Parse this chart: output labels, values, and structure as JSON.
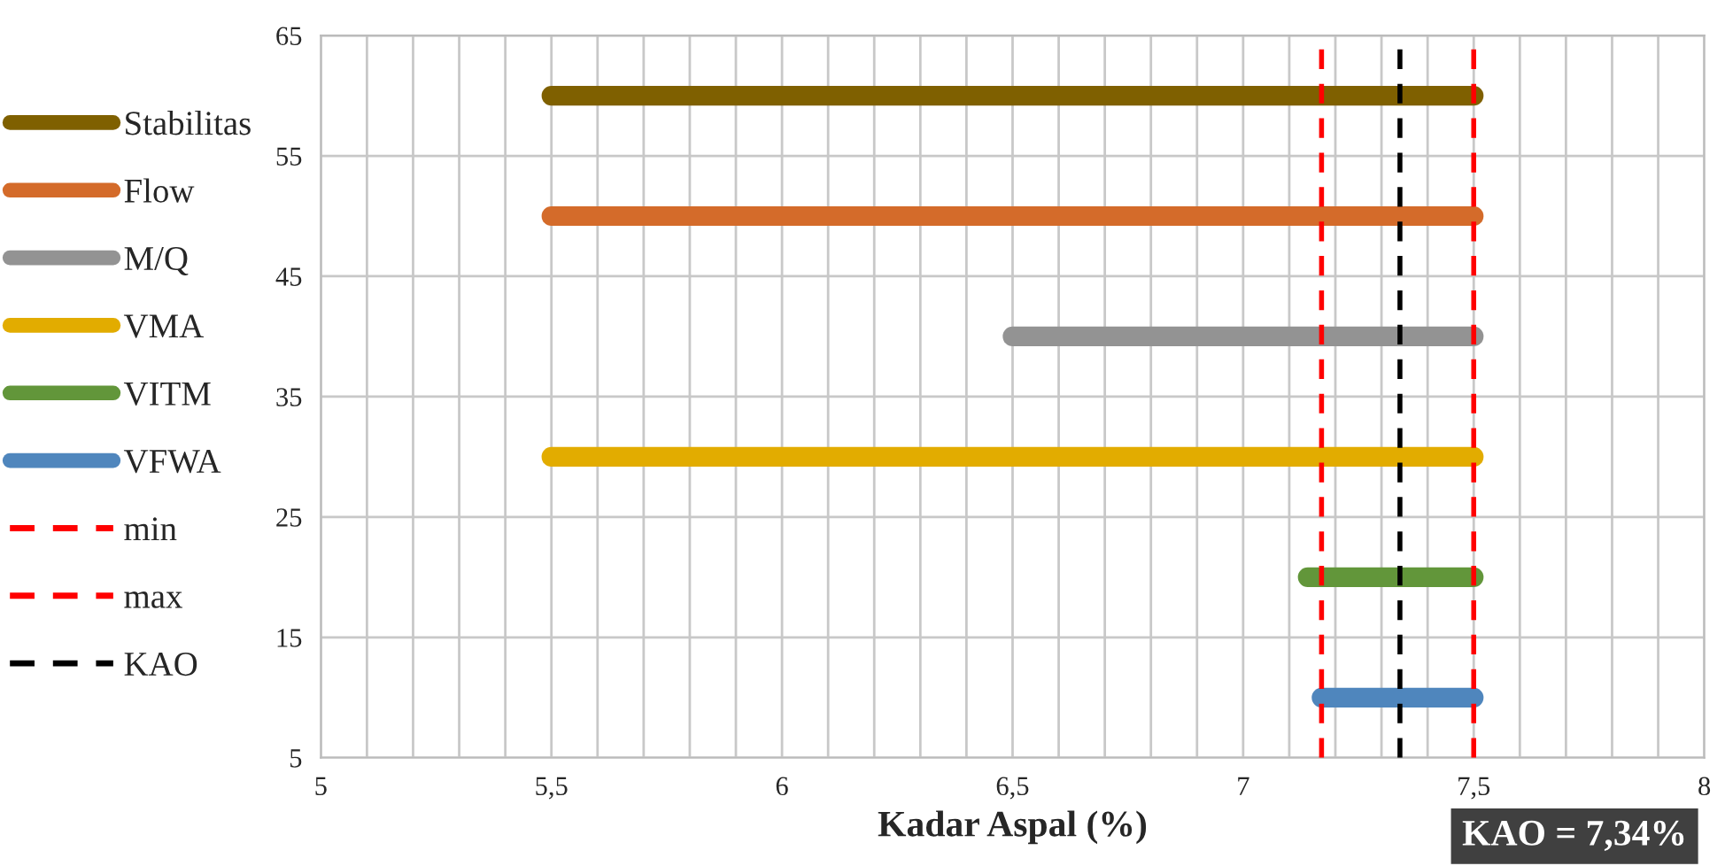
{
  "chart_data": {
    "type": "line",
    "xlabel": "Kadar Aspal (%)",
    "series": [
      {
        "name": "Stabilitas",
        "color": "#7f6000",
        "x": [
          5.5,
          7.5
        ],
        "values": [
          60,
          60
        ]
      },
      {
        "name": "Flow",
        "color": "#d46b2a",
        "x": [
          5.5,
          7.5
        ],
        "values": [
          50,
          50
        ]
      },
      {
        "name": "M/Q",
        "color": "#939393",
        "x": [
          6.5,
          7.5
        ],
        "values": [
          40,
          40
        ]
      },
      {
        "name": "VMA",
        "color": "#e2ac00",
        "x": [
          5.5,
          7.5
        ],
        "values": [
          30,
          30
        ]
      },
      {
        "name": "VITM",
        "color": "#62963a",
        "x": [
          7.14,
          7.5
        ],
        "values": [
          20,
          20
        ]
      },
      {
        "name": "VFWA",
        "color": "#4f86bd",
        "x": [
          7.17,
          7.5
        ],
        "values": [
          10,
          10
        ]
      },
      {
        "name": "min",
        "color": "#ff0000",
        "x": [
          7.17,
          7.17
        ],
        "values": [
          5,
          65
        ],
        "line_style": "dashed"
      },
      {
        "name": "max",
        "color": "#ff0000",
        "x": [
          7.5,
          7.5
        ],
        "values": [
          5,
          65
        ],
        "line_style": "dashed"
      },
      {
        "name": "KAO",
        "color": "#000000",
        "x": [
          7.34,
          7.34
        ],
        "values": [
          5,
          65
        ],
        "line_style": "dashed"
      }
    ],
    "xlim": [
      5,
      8
    ],
    "xticks": [
      5,
      {
        "value": 5.1,
        "label": null
      },
      {
        "value": 5.2,
        "label": null
      },
      {
        "value": 5.3,
        "label": null
      },
      {
        "value": 5.4,
        "label": null
      },
      {
        "value": 5.5,
        "label": "5,5"
      },
      {
        "value": 5.6,
        "label": null
      },
      {
        "value": 5.7,
        "label": null
      },
      {
        "value": 5.8,
        "label": null
      },
      {
        "value": 5.9,
        "label": null
      },
      6,
      {
        "value": 6.1,
        "label": null
      },
      {
        "value": 6.2,
        "label": null
      },
      {
        "value": 6.3,
        "label": null
      },
      {
        "value": 6.4,
        "label": null
      },
      {
        "value": 6.5,
        "label": "6,5"
      },
      {
        "value": 6.6,
        "label": null
      },
      {
        "value": 6.7,
        "label": null
      },
      {
        "value": 6.8,
        "label": null
      },
      {
        "value": 6.9,
        "label": null
      },
      7,
      {
        "value": 7.1,
        "label": null
      },
      {
        "value": 7.2,
        "label": null
      },
      {
        "value": 7.3,
        "label": null
      },
      {
        "value": 7.4,
        "label": null
      },
      {
        "value": 7.5,
        "label": "7,5"
      },
      {
        "value": 7.6,
        "label": null
      },
      {
        "value": 7.7,
        "label": null
      },
      {
        "value": 7.8,
        "label": null
      },
      {
        "value": 7.9,
        "label": null
      },
      8
    ],
    "ylim": [
      5,
      65
    ],
    "yticks": [
      5,
      15,
      25,
      35,
      45,
      55,
      65
    ],
    "grid": true,
    "legend": "left",
    "line_style": "solid",
    "annotations": [
      "KAO = 7,34%"
    ]
  }
}
